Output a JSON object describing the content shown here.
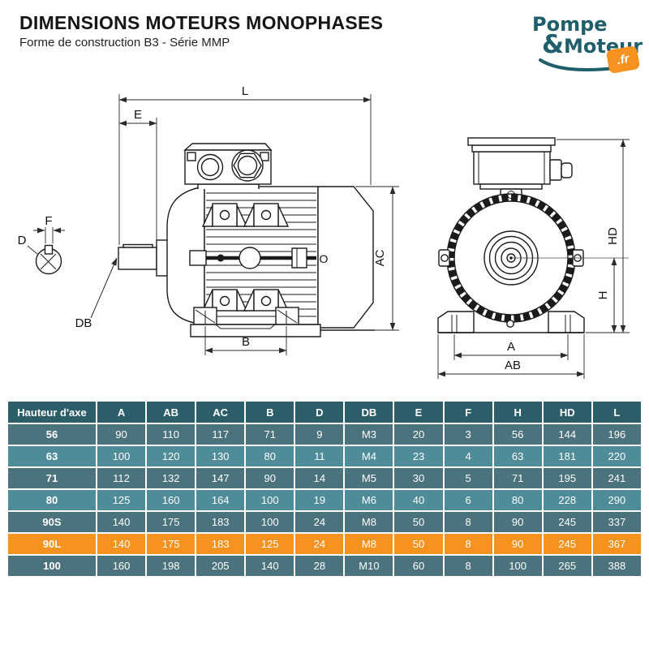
{
  "header": {
    "title": "DIMENSIONS MOTEURS MONOPHASES",
    "subtitle": "Forme de construction B3 - Série MMP"
  },
  "logo": {
    "line1": "Pompe",
    "amp": "&",
    "line2": "Moteur",
    "badge": ".fr",
    "teal": "#1F5E6B",
    "orange": "#F6921E"
  },
  "drawing": {
    "labels": {
      "L": "L",
      "E": "E",
      "F": "F",
      "D": "D",
      "DB": "DB",
      "B": "B",
      "AC": "AC",
      "O": "O",
      "HD": "HD",
      "H": "H",
      "A": "A",
      "AB": "AB"
    }
  },
  "table": {
    "header_col": "Hauteur d'axe",
    "columns": [
      "A",
      "AB",
      "AC",
      "B",
      "D",
      "DB",
      "E",
      "F",
      "H",
      "HD",
      "L"
    ],
    "rows": [
      {
        "label": "56",
        "highlight": false,
        "values": [
          "90",
          "110",
          "117",
          "71",
          "9",
          "M3",
          "20",
          "3",
          "56",
          "144",
          "196"
        ]
      },
      {
        "label": "63",
        "highlight": false,
        "values": [
          "100",
          "120",
          "130",
          "80",
          "11",
          "M4",
          "23",
          "4",
          "63",
          "181",
          "220"
        ]
      },
      {
        "label": "71",
        "highlight": false,
        "values": [
          "112",
          "132",
          "147",
          "90",
          "14",
          "M5",
          "30",
          "5",
          "71",
          "195",
          "241"
        ]
      },
      {
        "label": "80",
        "highlight": false,
        "values": [
          "125",
          "160",
          "164",
          "100",
          "19",
          "M6",
          "40",
          "6",
          "80",
          "228",
          "290"
        ]
      },
      {
        "label": "90S",
        "highlight": false,
        "values": [
          "140",
          "175",
          "183",
          "100",
          "24",
          "M8",
          "50",
          "8",
          "90",
          "245",
          "337"
        ]
      },
      {
        "label": "90L",
        "highlight": true,
        "values": [
          "140",
          "175",
          "183",
          "125",
          "24",
          "M8",
          "50",
          "8",
          "90",
          "245",
          "367"
        ]
      },
      {
        "label": "100",
        "highlight": false,
        "values": [
          "160",
          "198",
          "205",
          "140",
          "28",
          "M10",
          "60",
          "8",
          "100",
          "265",
          "388"
        ]
      }
    ],
    "colors": {
      "header_bg": "#2B5E68",
      "row_dark": "#4B737D",
      "row_light": "#4F8C99",
      "row_highlight": "#F6921E",
      "text": "#FFFFFF"
    }
  }
}
